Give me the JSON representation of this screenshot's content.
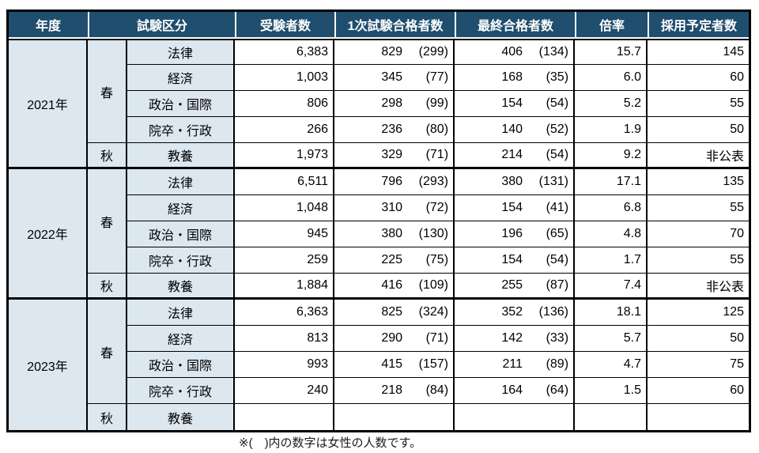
{
  "colors": {
    "header_bg": "#1F4E6E",
    "header_text": "#FFFFFF",
    "row_blue": "#DCE7F0",
    "grid": "#000000"
  },
  "table": {
    "headers": {
      "year": "年度",
      "category": "試験区分",
      "applicants": "受験者数",
      "first_pass": "1次試験合格者数",
      "final_pass": "最終合格者数",
      "ratio": "倍率",
      "planned_hires": "採用予定者数"
    },
    "groups": [
      {
        "year": "2021年",
        "seasons": [
          {
            "label": "春",
            "span": 4
          },
          {
            "label": "秋",
            "span": 1
          }
        ],
        "rows": [
          {
            "subject": "法律",
            "applicants": "6,383",
            "first": "829",
            "first_f": "(299)",
            "final": "406",
            "final_f": "(134)",
            "ratio": "15.7",
            "hires": "145"
          },
          {
            "subject": "経済",
            "applicants": "1,003",
            "first": "345",
            "first_f": "(77)",
            "final": "168",
            "final_f": "(35)",
            "ratio": "6.0",
            "hires": "60"
          },
          {
            "subject": "政治・国際",
            "applicants": "806",
            "first": "298",
            "first_f": "(99)",
            "final": "154",
            "final_f": "(54)",
            "ratio": "5.2",
            "hires": "55"
          },
          {
            "subject": "院卒・行政",
            "applicants": "266",
            "first": "236",
            "first_f": "(80)",
            "final": "140",
            "final_f": "(52)",
            "ratio": "1.9",
            "hires": "50"
          },
          {
            "subject": "教養",
            "applicants": "1,973",
            "first": "329",
            "first_f": "(71)",
            "final": "214",
            "final_f": "(54)",
            "ratio": "9.2",
            "hires": "非公表"
          }
        ]
      },
      {
        "year": "2022年",
        "seasons": [
          {
            "label": "春",
            "span": 4
          },
          {
            "label": "秋",
            "span": 1
          }
        ],
        "rows": [
          {
            "subject": "法律",
            "applicants": "6,511",
            "first": "796",
            "first_f": "(293)",
            "final": "380",
            "final_f": "(131)",
            "ratio": "17.1",
            "hires": "135"
          },
          {
            "subject": "経済",
            "applicants": "1,048",
            "first": "310",
            "first_f": "(72)",
            "final": "154",
            "final_f": "(41)",
            "ratio": "6.8",
            "hires": "55"
          },
          {
            "subject": "政治・国際",
            "applicants": "945",
            "first": "380",
            "first_f": "(130)",
            "final": "196",
            "final_f": "(65)",
            "ratio": "4.8",
            "hires": "70"
          },
          {
            "subject": "院卒・行政",
            "applicants": "259",
            "first": "225",
            "first_f": "(75)",
            "final": "154",
            "final_f": "(54)",
            "ratio": "1.7",
            "hires": "55"
          },
          {
            "subject": "教養",
            "applicants": "1,884",
            "first": "416",
            "first_f": "(109)",
            "final": "255",
            "final_f": "(87)",
            "ratio": "7.4",
            "hires": "非公表"
          }
        ]
      },
      {
        "year": "2023年",
        "seasons": [
          {
            "label": "春",
            "span": 4
          },
          {
            "label": "秋",
            "span": 1
          }
        ],
        "rows": [
          {
            "subject": "法律",
            "applicants": "6,363",
            "first": "825",
            "first_f": "(324)",
            "final": "352",
            "final_f": "(136)",
            "ratio": "18.1",
            "hires": "125"
          },
          {
            "subject": "経済",
            "applicants": "813",
            "first": "290",
            "first_f": "(71)",
            "final": "142",
            "final_f": "(33)",
            "ratio": "5.7",
            "hires": "50"
          },
          {
            "subject": "政治・国際",
            "applicants": "993",
            "first": "415",
            "first_f": "(157)",
            "final": "211",
            "final_f": "(89)",
            "ratio": "4.7",
            "hires": "75"
          },
          {
            "subject": "院卒・行政",
            "applicants": "240",
            "first": "218",
            "first_f": "(84)",
            "final": "164",
            "final_f": "(64)",
            "ratio": "1.5",
            "hires": "60"
          },
          {
            "subject": "教養",
            "applicants": "",
            "first": "",
            "first_f": "",
            "final": "",
            "final_f": "",
            "ratio": "",
            "hires": ""
          }
        ]
      }
    ]
  },
  "footnote": "※(　)内の数字は女性の人数です。"
}
